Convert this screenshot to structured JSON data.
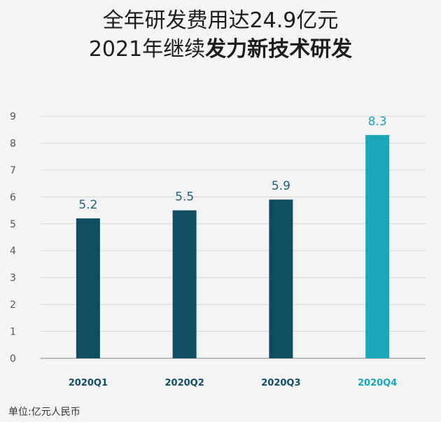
{
  "title": {
    "line1": "全年研发费用达24.9亿元",
    "line2_normal": "2021年继续",
    "line2_bold": "发力新技术研发"
  },
  "unit_label": "单位:亿元人民币",
  "colors": {
    "bar_regular": "#0f4d63",
    "bar_highlight": "#1aa8b8",
    "label_regular": "#1f5f75",
    "label_highlight": "#1aa8b8",
    "grid": "#d6d6d6",
    "axis_text": "#555555"
  },
  "chart_data": {
    "type": "bar",
    "categories": [
      "2020Q1",
      "2020Q2",
      "2020Q3",
      "2020Q4"
    ],
    "values": [
      5.2,
      5.5,
      5.9,
      8.3
    ],
    "value_labels": [
      "5.2",
      "5.5",
      "5.9",
      "8.3"
    ],
    "highlight_index": 3,
    "yticks": [
      "0",
      "1",
      "2",
      "3",
      "4",
      "5",
      "6",
      "7",
      "8",
      "9"
    ],
    "ylim": [
      0,
      9
    ],
    "grid": true,
    "legend": "none"
  }
}
